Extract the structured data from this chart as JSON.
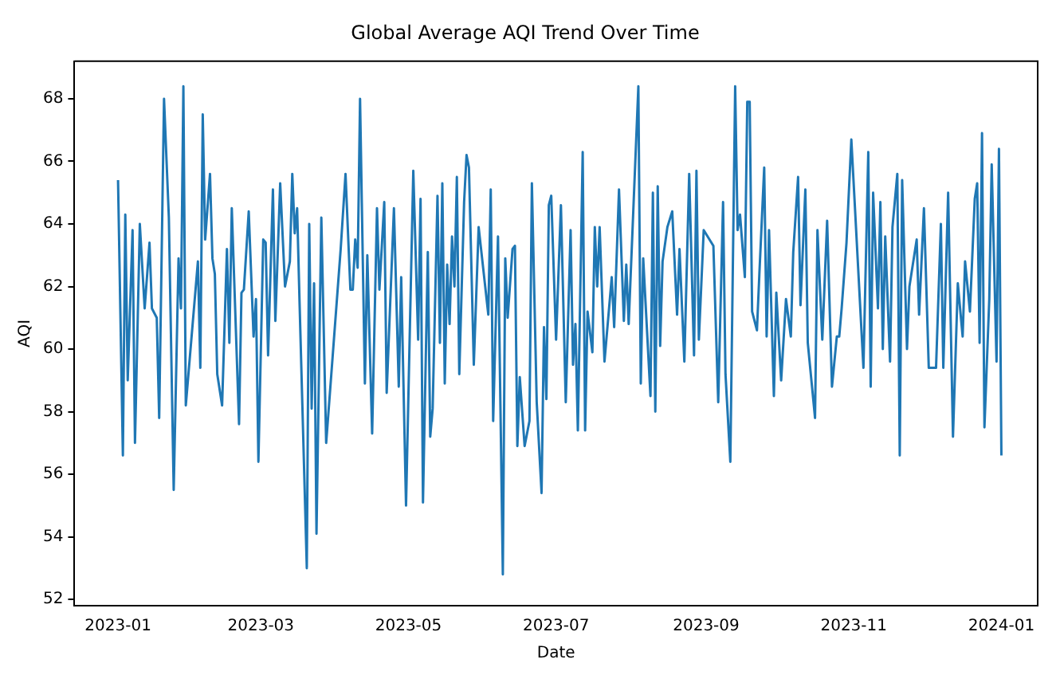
{
  "chart_data": {
    "type": "line",
    "title": "Global Average AQI Trend Over Time",
    "xlabel": "Date",
    "ylabel": "AQI",
    "grid": false,
    "legend": false,
    "marker": "none",
    "line_style": "solid",
    "xlim": [
      "2022-12-14",
      "2024-01-16"
    ],
    "xticks": [
      "2023-01",
      "2023-03",
      "2023-05",
      "2023-07",
      "2023-09",
      "2023-11",
      "2024-01"
    ],
    "ylim": [
      51.8,
      69.2
    ],
    "yticks": [
      52,
      54,
      56,
      58,
      60,
      62,
      64,
      66,
      68
    ],
    "x": [
      "2023-01-01",
      "2023-01-03",
      "2023-01-04",
      "2023-01-05",
      "2023-01-07",
      "2023-01-08",
      "2023-01-10",
      "2023-01-12",
      "2023-01-14",
      "2023-01-15",
      "2023-01-17",
      "2023-01-18",
      "2023-01-20",
      "2023-01-22",
      "2023-01-24",
      "2023-01-26",
      "2023-01-27",
      "2023-01-28",
      "2023-01-29",
      "2023-02-03",
      "2023-02-04",
      "2023-02-05",
      "2023-02-06",
      "2023-02-08",
      "2023-02-09",
      "2023-02-10",
      "2023-02-11",
      "2023-02-13",
      "2023-02-15",
      "2023-02-16",
      "2023-02-17",
      "2023-02-20",
      "2023-02-21",
      "2023-02-22",
      "2023-02-24",
      "2023-02-26",
      "2023-02-27",
      "2023-02-28",
      "2023-03-02",
      "2023-03-03",
      "2023-03-04",
      "2023-03-06",
      "2023-03-07",
      "2023-03-09",
      "2023-03-11",
      "2023-03-13",
      "2023-03-14",
      "2023-03-15",
      "2023-03-16",
      "2023-03-17",
      "2023-03-20",
      "2023-03-21",
      "2023-03-22",
      "2023-03-23",
      "2023-03-24",
      "2023-03-26",
      "2023-03-28",
      "2023-04-03",
      "2023-04-05",
      "2023-04-07",
      "2023-04-08",
      "2023-04-09",
      "2023-04-10",
      "2023-04-11",
      "2023-04-13",
      "2023-04-14",
      "2023-04-16",
      "2023-04-18",
      "2023-04-19",
      "2023-04-21",
      "2023-04-22",
      "2023-04-25",
      "2023-04-27",
      "2023-04-28",
      "2023-04-30",
      "2023-05-03",
      "2023-05-05",
      "2023-05-06",
      "2023-05-07",
      "2023-05-09",
      "2023-05-10",
      "2023-05-11",
      "2023-05-13",
      "2023-05-14",
      "2023-05-15",
      "2023-05-16",
      "2023-05-17",
      "2023-05-18",
      "2023-05-19",
      "2023-05-20",
      "2023-05-21",
      "2023-05-22",
      "2023-05-24",
      "2023-05-25",
      "2023-05-26",
      "2023-05-28",
      "2023-05-30",
      "2023-06-03",
      "2023-06-04",
      "2023-06-05",
      "2023-06-07",
      "2023-06-09",
      "2023-06-10",
      "2023-06-11",
      "2023-06-13",
      "2023-06-14",
      "2023-06-15",
      "2023-06-16",
      "2023-06-18",
      "2023-06-20",
      "2023-06-21",
      "2023-06-23",
      "2023-06-25",
      "2023-06-26",
      "2023-06-27",
      "2023-06-28",
      "2023-06-29",
      "2023-07-01",
      "2023-07-03",
      "2023-07-05",
      "2023-07-07",
      "2023-07-08",
      "2023-07-09",
      "2023-07-10",
      "2023-07-12",
      "2023-07-13",
      "2023-07-14",
      "2023-07-16",
      "2023-07-17",
      "2023-07-18",
      "2023-07-19",
      "2023-07-21",
      "2023-07-24",
      "2023-07-25",
      "2023-07-27",
      "2023-07-29",
      "2023-07-30",
      "2023-07-31",
      "2023-08-04",
      "2023-08-05",
      "2023-08-06",
      "2023-08-09",
      "2023-08-10",
      "2023-08-11",
      "2023-08-12",
      "2023-08-13",
      "2023-08-14",
      "2023-08-16",
      "2023-08-18",
      "2023-08-20",
      "2023-08-21",
      "2023-08-23",
      "2023-08-25",
      "2023-08-27",
      "2023-08-28",
      "2023-08-29",
      "2023-08-31",
      "2023-09-04",
      "2023-09-06",
      "2023-09-08",
      "2023-09-09",
      "2023-09-11",
      "2023-09-13",
      "2023-09-14",
      "2023-09-15",
      "2023-09-17",
      "2023-09-18",
      "2023-09-19",
      "2023-09-20",
      "2023-09-22",
      "2023-09-23",
      "2023-09-25",
      "2023-09-26",
      "2023-09-27",
      "2023-09-29",
      "2023-09-30",
      "2023-10-02",
      "2023-10-04",
      "2023-10-06",
      "2023-10-07",
      "2023-10-09",
      "2023-10-10",
      "2023-10-12",
      "2023-10-13",
      "2023-10-16",
      "2023-10-17",
      "2023-10-19",
      "2023-10-21",
      "2023-10-23",
      "2023-10-25",
      "2023-10-26",
      "2023-10-27",
      "2023-10-29",
      "2023-10-31",
      "2023-11-05",
      "2023-11-07",
      "2023-11-08",
      "2023-11-09",
      "2023-11-11",
      "2023-11-12",
      "2023-11-13",
      "2023-11-14",
      "2023-11-16",
      "2023-11-17",
      "2023-11-19",
      "2023-11-20",
      "2023-11-21",
      "2023-11-23",
      "2023-11-24",
      "2023-11-27",
      "2023-11-28",
      "2023-11-30",
      "2023-12-02",
      "2023-12-05",
      "2023-12-07",
      "2023-12-08",
      "2023-12-10",
      "2023-12-12",
      "2023-12-14",
      "2023-12-16",
      "2023-12-17",
      "2023-12-19",
      "2023-12-21",
      "2023-12-22",
      "2023-12-23",
      "2023-12-24",
      "2023-12-25",
      "2023-12-27",
      "2023-12-28",
      "2023-12-30",
      "2023-12-31",
      "2024-01-01"
    ],
    "series": [
      {
        "color": "#1f77b4",
        "values": [
          65.4,
          56.6,
          64.3,
          59.0,
          63.8,
          57.0,
          64.0,
          61.3,
          63.4,
          61.3,
          61.0,
          57.8,
          68.0,
          64.2,
          55.5,
          62.9,
          61.3,
          68.4,
          58.2,
          62.8,
          59.4,
          67.5,
          63.5,
          65.6,
          62.9,
          62.4,
          59.2,
          58.2,
          63.2,
          60.2,
          64.5,
          57.6,
          61.8,
          61.9,
          64.4,
          60.4,
          61.6,
          56.4,
          63.5,
          63.4,
          59.8,
          65.1,
          60.9,
          65.3,
          62.0,
          62.8,
          65.6,
          63.7,
          64.5,
          61.5,
          53.0,
          64.0,
          58.1,
          62.1,
          54.1,
          64.2,
          57.0,
          63.2,
          65.6,
          61.9,
          61.9,
          63.5,
          62.6,
          68.0,
          58.9,
          63.0,
          57.3,
          64.5,
          61.9,
          64.7,
          58.6,
          64.5,
          58.8,
          62.3,
          55.0,
          65.7,
          60.3,
          64.8,
          55.1,
          63.1,
          57.2,
          58.1,
          64.9,
          60.2,
          65.3,
          58.9,
          62.7,
          60.8,
          63.6,
          62.0,
          65.5,
          59.2,
          64.7,
          66.2,
          65.8,
          59.5,
          63.9,
          61.1,
          65.1,
          57.7,
          63.6,
          52.8,
          62.9,
          61.0,
          63.2,
          63.3,
          56.9,
          59.1,
          56.9,
          57.7,
          65.3,
          58.3,
          55.4,
          60.7,
          58.4,
          64.6,
          64.9,
          60.3,
          64.6,
          58.3,
          63.8,
          59.5,
          60.8,
          57.4,
          66.3,
          57.4,
          61.2,
          59.9,
          63.9,
          62.0,
          63.9,
          59.6,
          62.3,
          60.7,
          65.1,
          60.9,
          62.7,
          60.8,
          68.4,
          58.9,
          62.9,
          58.5,
          65.0,
          58.0,
          65.2,
          60.1,
          62.8,
          63.9,
          64.4,
          61.1,
          63.2,
          59.6,
          65.6,
          59.8,
          65.7,
          60.3,
          63.8,
          63.3,
          58.3,
          64.7,
          59.2,
          56.4,
          68.4,
          63.8,
          64.3,
          62.3,
          67.9,
          67.9,
          61.2,
          60.6,
          62.4,
          65.8,
          60.4,
          63.8,
          58.5,
          61.8,
          59.0,
          61.6,
          60.4,
          63.1,
          65.5,
          61.4,
          65.1,
          60.2,
          57.8,
          63.8,
          60.3,
          64.1,
          58.8,
          60.4,
          60.4,
          61.3,
          63.4,
          66.7,
          59.4,
          66.3,
          58.8,
          65.0,
          61.3,
          64.7,
          60.0,
          63.6,
          59.6,
          63.9,
          65.6,
          56.6,
          65.4,
          60.0,
          62.0,
          63.5,
          61.1,
          64.5,
          59.4,
          59.4,
          64.0,
          59.4,
          65.0,
          57.2,
          62.1,
          60.4,
          62.8,
          61.2,
          64.8,
          65.3,
          60.2,
          66.9,
          57.5,
          61.6,
          65.9,
          59.6,
          66.4,
          56.6
        ]
      }
    ]
  }
}
